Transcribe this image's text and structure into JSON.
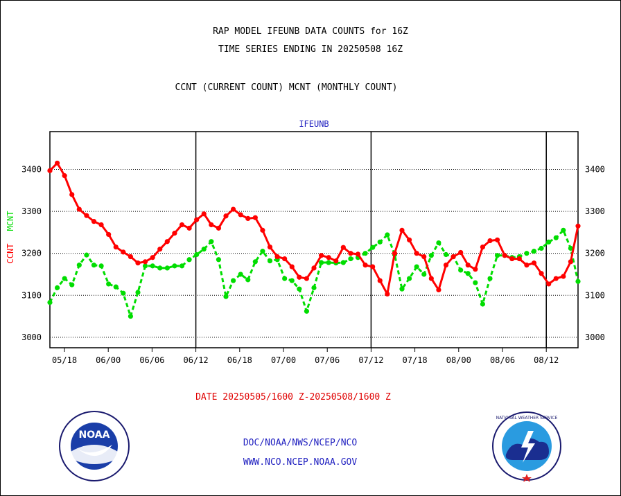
{
  "title_line1": "RAP MODEL IFEUNB DATA COUNTS for 16Z",
  "title_line2": "TIME SERIES ENDING IN 20250508 16Z",
  "subtitle": "CCNT (CURRENT COUNT) MCNT (MONTHLY COUNT)",
  "date_range": "DATE 20250505/1600 Z-20250508/1600 Z",
  "credit_line1": "DOC/NOAA/NWS/NCEP/NCO",
  "credit_line2": "WWW.NCO.NCEP.NOAA.GOV",
  "noaa_logo_text": "NOAA",
  "nws_logo_text": "NATIONAL WEATHER SERVICE",
  "colors": {
    "ccnt": "#ff0000",
    "mcnt": "#00dd00",
    "credit": "#2020c0",
    "header": "#2020c0"
  },
  "chart_data": {
    "type": "line",
    "title": "IFEUNB",
    "ylabel_left_ccnt": "CCNT",
    "ylabel_left_mcnt": "MCNT",
    "ylim": [
      2975,
      3490
    ],
    "yticks": [
      3000,
      3100,
      3200,
      3300,
      3400
    ],
    "x_tick_labels": [
      "05/18",
      "06/00",
      "06/06",
      "06/12",
      "06/18",
      "07/00",
      "07/06",
      "07/12",
      "07/18",
      "08/00",
      "08/06",
      "08/12"
    ],
    "major_divisions": [
      "06/12",
      "07/12",
      "08/12"
    ],
    "grid": "horizontal dotted",
    "series": [
      {
        "name": "CCNT",
        "values": [
          3397,
          3415,
          3385,
          3340,
          3305,
          3290,
          3276,
          3268,
          3245,
          3215,
          3203,
          3192,
          3177,
          3180,
          3190,
          3210,
          3228,
          3248,
          3268,
          3260,
          3280,
          3294,
          3268,
          3260,
          3289,
          3305,
          3292,
          3283,
          3285,
          3255,
          3215,
          3192,
          3187,
          3168,
          3143,
          3140,
          3165,
          3195,
          3190,
          3182,
          3214,
          3200,
          3198,
          3172,
          3168,
          3135,
          3103,
          3200,
          3255,
          3232,
          3200,
          3192,
          3140,
          3113,
          3172,
          3192,
          3202,
          3172,
          3162,
          3215,
          3230,
          3232,
          3195,
          3187,
          3187,
          3172,
          3177,
          3152,
          3127,
          3140,
          3145,
          3180,
          3265
        ]
      },
      {
        "name": "MCNT",
        "values": [
          3083,
          3118,
          3140,
          3125,
          3172,
          3196,
          3172,
          3170,
          3127,
          3120,
          3105,
          3050,
          3107,
          3170,
          3170,
          3165,
          3165,
          3170,
          3170,
          3185,
          3197,
          3210,
          3228,
          3185,
          3097,
          3135,
          3150,
          3137,
          3180,
          3205,
          3182,
          3185,
          3140,
          3135,
          3115,
          3062,
          3118,
          3178,
          3178,
          3177,
          3178,
          3187,
          3190,
          3200,
          3214,
          3227,
          3244,
          3197,
          3115,
          3140,
          3168,
          3150,
          3195,
          3225,
          3197,
          3192,
          3160,
          3152,
          3130,
          3079,
          3140,
          3195,
          3195,
          3190,
          3192,
          3200,
          3205,
          3212,
          3227,
          3237,
          3255,
          3212,
          3133
        ]
      }
    ]
  }
}
